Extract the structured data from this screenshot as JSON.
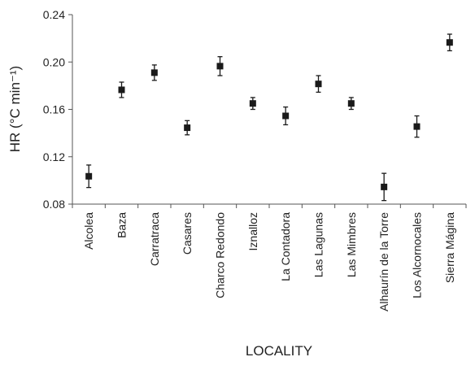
{
  "chart_data": {
    "type": "scatter",
    "title": "",
    "xlabel": "LOCALITY",
    "ylabel": "HR (°C min⁻¹)",
    "ylim": [
      0.08,
      0.24
    ],
    "yticks": [
      "0.08",
      "0.12",
      "0.16",
      "0.20",
      "0.24"
    ],
    "ytick_values": [
      0.08,
      0.12,
      0.16,
      0.2,
      0.24
    ],
    "grid": false,
    "legend": "none",
    "marker": "square",
    "marker_color": "#1a1a1a",
    "categories": [
      "Alcolea",
      "Baza",
      "Carratraca",
      "Casares",
      "Charco Redondo",
      "Iznalloz",
      "La Contadora",
      "Las Lagunas",
      "Las Mimbres",
      "Alhaurín de la Torre",
      "Los Alcornocales",
      "Sierra Mágina"
    ],
    "values": [
      0.1035,
      0.1765,
      0.191,
      0.1445,
      0.1965,
      0.165,
      0.1545,
      0.1815,
      0.165,
      0.0945,
      0.1455,
      0.2165
    ],
    "errors": [
      0.0095,
      0.0065,
      0.0065,
      0.006,
      0.008,
      0.005,
      0.0075,
      0.007,
      0.005,
      0.0115,
      0.009,
      0.007
    ]
  }
}
